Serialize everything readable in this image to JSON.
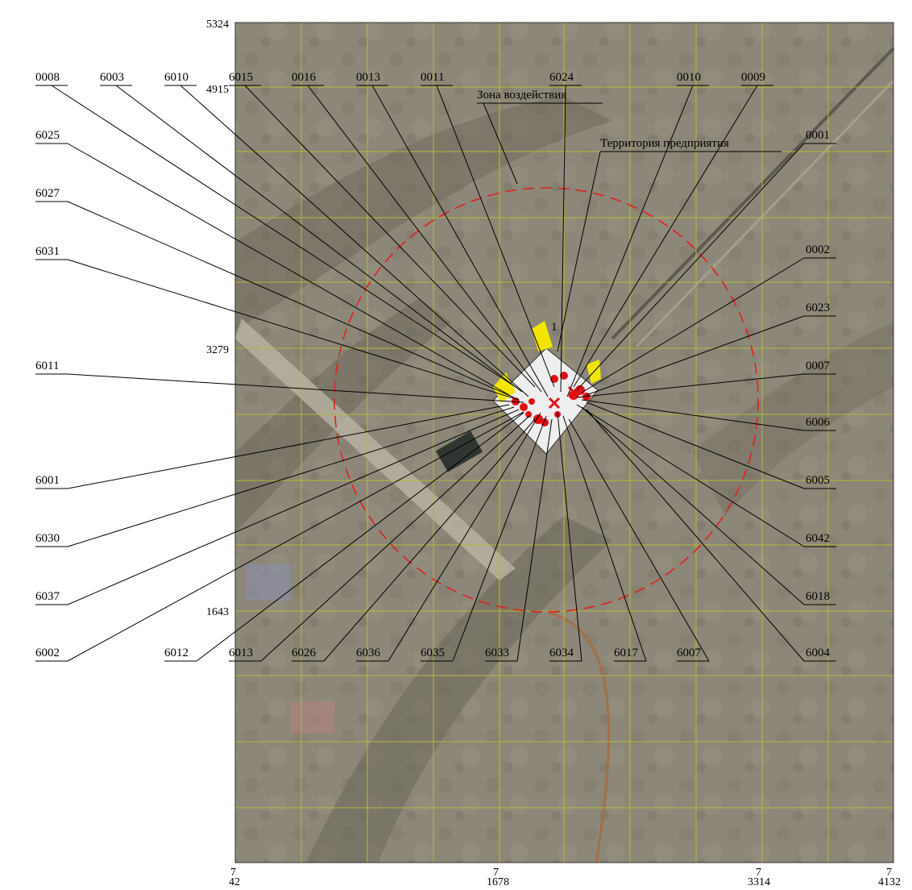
{
  "axes": {
    "x_ticks": [
      "42",
      "1678",
      "3314",
      "4132"
    ],
    "y_ticks": [
      "5324",
      "4915",
      "3279",
      "1643"
    ],
    "origin_marks": [
      "7",
      "7",
      "7",
      "7"
    ]
  },
  "zones": {
    "impact_zone": "Зона воздействия",
    "enterprise_territory": "Территория предприятия",
    "site_number": "1"
  },
  "colors": {
    "impact_circle": "#e02020",
    "grid_lines": "#b8b83a",
    "source_markers": "#e01010",
    "yellow_zones": "#f2e600",
    "leader_lines": "#000000"
  },
  "sources": {
    "top": [
      "0008",
      "6003",
      "6010",
      "6015",
      "0016",
      "0013",
      "0011",
      "6024",
      "0010",
      "0009"
    ],
    "left": [
      "6025",
      "6027",
      "6031",
      "6011",
      "6001",
      "6030",
      "6037",
      "6002"
    ],
    "right": [
      "0001",
      "0002",
      "6023",
      "0007",
      "6006",
      "6005",
      "6042",
      "6018",
      "6004"
    ],
    "bottom": [
      "6012",
      "6013",
      "6026",
      "6036",
      "6035",
      "6033",
      "6034",
      "6017",
      "6007"
    ]
  }
}
